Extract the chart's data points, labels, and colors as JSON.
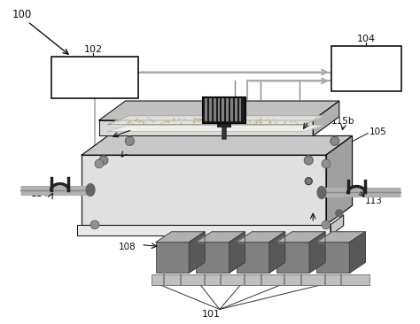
{
  "bg_color": "#ffffff",
  "box_edge": "#111111",
  "dark": "#111111",
  "gray1": "#c8c8c8",
  "gray2": "#a0a0a0",
  "gray3": "#707070",
  "gray4": "#505050",
  "gray5": "#e0e0e0",
  "pipe_gray": "#aaaaaa",
  "arrow_gray": "#aaaaaa",
  "fin_front": "#808080",
  "fin_top": "#b0b0b0",
  "fin_right": "#585858",
  "sand": "#e8e4d0",
  "inner_top": "#d8d8d8"
}
